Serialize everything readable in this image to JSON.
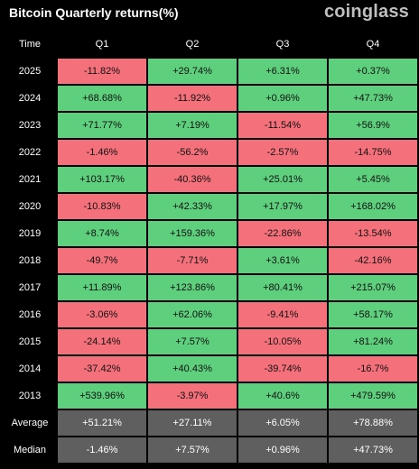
{
  "header": {
    "title": "Bitcoin Quarterly returns(%)",
    "brand": "coinglass"
  },
  "colors": {
    "positive": "#5ecf7d",
    "negative": "#f4707a",
    "stats_bg": "#5f5f5f",
    "background": "#000000"
  },
  "chart_data": {
    "type": "table",
    "title": "Bitcoin Quarterly returns(%)",
    "columns": [
      "Time",
      "Q1",
      "Q2",
      "Q3",
      "Q4"
    ],
    "rows": [
      {
        "label": "2025",
        "values": [
          "-11.82%",
          "+29.74%",
          "+6.31%",
          "+0.37%"
        ]
      },
      {
        "label": "2024",
        "values": [
          "+68.68%",
          "-11.92%",
          "+0.96%",
          "+47.73%"
        ]
      },
      {
        "label": "2023",
        "values": [
          "+71.77%",
          "+7.19%",
          "-11.54%",
          "+56.9%"
        ]
      },
      {
        "label": "2022",
        "values": [
          "-1.46%",
          "-56.2%",
          "-2.57%",
          "-14.75%"
        ]
      },
      {
        "label": "2021",
        "values": [
          "+103.17%",
          "-40.36%",
          "+25.01%",
          "+5.45%"
        ]
      },
      {
        "label": "2020",
        "values": [
          "-10.83%",
          "+42.33%",
          "+17.97%",
          "+168.02%"
        ]
      },
      {
        "label": "2019",
        "values": [
          "+8.74%",
          "+159.36%",
          "-22.86%",
          "-13.54%"
        ]
      },
      {
        "label": "2018",
        "values": [
          "-49.7%",
          "-7.71%",
          "+3.61%",
          "-42.16%"
        ]
      },
      {
        "label": "2017",
        "values": [
          "+11.89%",
          "+123.86%",
          "+80.41%",
          "+215.07%"
        ]
      },
      {
        "label": "2016",
        "values": [
          "-3.06%",
          "+62.06%",
          "-9.41%",
          "+58.17%"
        ]
      },
      {
        "label": "2015",
        "values": [
          "-24.14%",
          "+7.57%",
          "-10.05%",
          "+81.24%"
        ]
      },
      {
        "label": "2014",
        "values": [
          "-37.42%",
          "+40.43%",
          "-39.74%",
          "-16.7%"
        ]
      },
      {
        "label": "2013",
        "values": [
          "+539.96%",
          "-3.97%",
          "+40.6%",
          "+479.59%"
        ]
      }
    ],
    "summary_rows": [
      {
        "label": "Average",
        "values": [
          "+51.21%",
          "+27.11%",
          "+6.05%",
          "+78.88%"
        ]
      },
      {
        "label": "Median",
        "values": [
          "-1.46%",
          "+7.57%",
          "+0.96%",
          "+47.73%"
        ]
      }
    ]
  }
}
